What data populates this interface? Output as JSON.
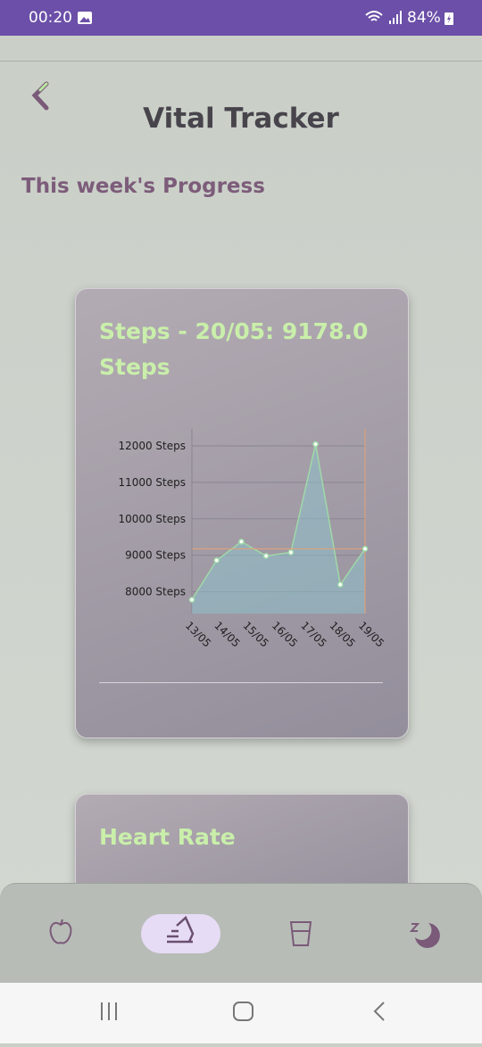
{
  "status_bar": {
    "time": "00:20",
    "battery": "84%"
  },
  "header": {
    "title": "Vital Tracker",
    "subtitle": "This week's Progress"
  },
  "cards": [
    {
      "title": "Steps - 20/05: 9178.0 Steps"
    },
    {
      "title": "Heart Rate"
    }
  ],
  "chart_data": {
    "type": "line",
    "x": [
      0,
      1,
      2,
      3,
      4,
      5,
      6,
      7
    ],
    "values": [
      7779,
      8859,
      9374,
      8982,
      9080,
      12049,
      8196,
      9178
    ],
    "xlim": [
      0,
      7
    ],
    "xticks": [
      {
        "value": 0,
        "label": "13/05"
      },
      {
        "value": 1.17,
        "label": "14/05"
      },
      {
        "value": 2.33,
        "label": "15/05"
      },
      {
        "value": 3.5,
        "label": "16/05"
      },
      {
        "value": 4.67,
        "label": "17/05"
      },
      {
        "value": 5.83,
        "label": "18/05"
      },
      {
        "value": 7,
        "label": "19/05"
      }
    ],
    "ylim": [
      7400,
      12466
    ],
    "yticks": [
      {
        "value": 8000,
        "label": "8000 Steps"
      },
      {
        "value": 9000,
        "label": "9000 Steps"
      },
      {
        "value": 10000,
        "label": "10000 Steps"
      },
      {
        "value": 11000,
        "label": "11000 Steps"
      },
      {
        "value": 12000,
        "label": "12000 Steps"
      }
    ],
    "color": "#9fd9a8",
    "fill": true,
    "grid": true,
    "highlight_index": 7
  }
}
